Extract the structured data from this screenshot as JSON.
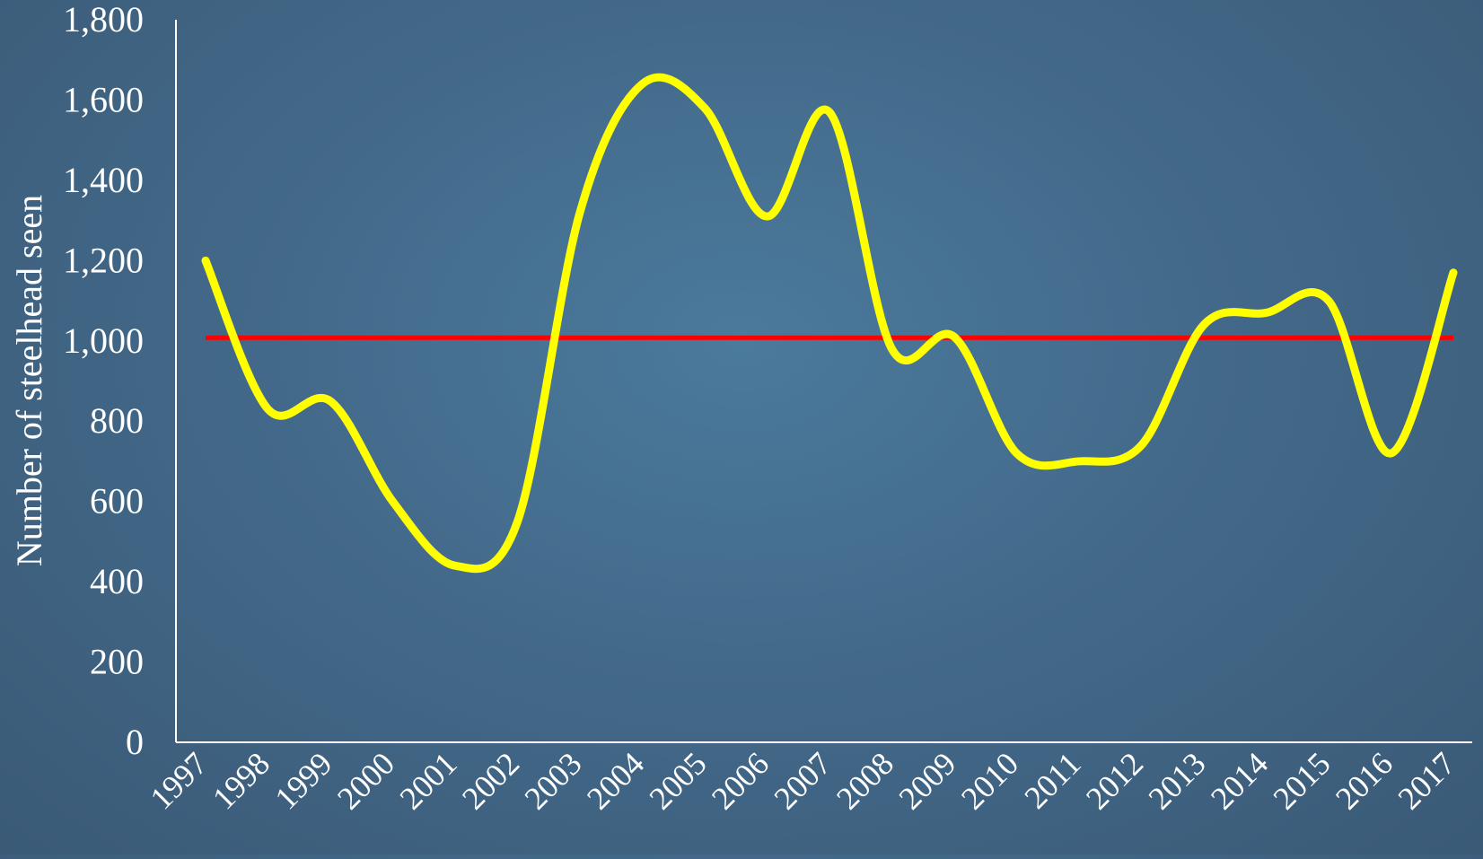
{
  "colors": {
    "background": "#456f91",
    "axis": "#ffffff",
    "text": "#ffffff",
    "series_line": "#ffff00",
    "reference_line": "#ff0000"
  },
  "chart_data": {
    "type": "line",
    "title": "",
    "xlabel": "",
    "ylabel": "Number of steelhead seen",
    "categories": [
      "1997",
      "1998",
      "1999",
      "2000",
      "2001",
      "2002",
      "2003",
      "2004",
      "2005",
      "2006",
      "2007",
      "2008",
      "2009",
      "2010",
      "2011",
      "2012",
      "2013",
      "2014",
      "2015",
      "2016",
      "2017"
    ],
    "ylim": [
      0,
      1800
    ],
    "yticks": [
      0,
      200,
      400,
      600,
      800,
      1000,
      1200,
      1400,
      1600,
      1800
    ],
    "ytick_labels": [
      "0",
      "200",
      "400",
      "600",
      "800",
      "1,000",
      "1,200",
      "1,400",
      "1,600",
      "1,800"
    ],
    "series": [
      {
        "values": [
          1200,
          830,
          850,
          600,
          440,
          550,
          1320,
          1640,
          1580,
          1310,
          1570,
          980,
          1010,
          720,
          700,
          740,
          1040,
          1070,
          1100,
          720,
          1170
        ]
      }
    ],
    "reference_line": {
      "value": 1008
    },
    "grid": false,
    "legend": "none"
  }
}
